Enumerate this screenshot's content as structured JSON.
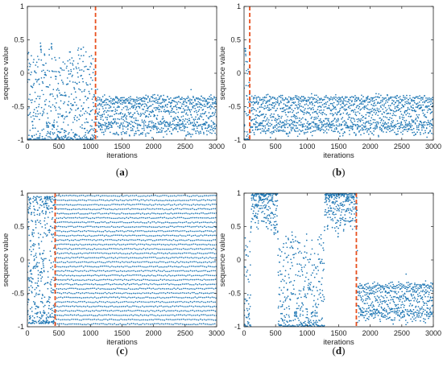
{
  "colors": {
    "points": "#1f77b4",
    "threshold_line": "#e8501e",
    "axes": "#222222"
  },
  "chart_data": [
    {
      "type": "scatter",
      "panel": "a",
      "label_prefix": "(",
      "label_letter": "a",
      "label_suffix": ")",
      "xlabel": "iterations",
      "ylabel": "sequence value",
      "xlim": [
        0,
        3000
      ],
      "ylim": [
        -1,
        1
      ],
      "xticks": [
        "0",
        "500",
        "1000",
        "1500",
        "2000",
        "2500",
        "3000"
      ],
      "yticks": [
        "-1",
        "-0.5",
        "0",
        "0.5",
        "1"
      ],
      "threshold_x": 1080,
      "n_points": 1500,
      "pattern": "transient then periodic clusters"
    },
    {
      "type": "scatter",
      "panel": "b",
      "label_prefix": "(",
      "label_letter": "b",
      "label_suffix": ")",
      "xlabel": "iterations",
      "ylabel": "sequence value",
      "xlim": [
        0,
        3000
      ],
      "ylim": [
        -1,
        1
      ],
      "xticks": [
        "0",
        "500",
        "1000",
        "1500",
        "2000",
        "2500",
        "3000"
      ],
      "yticks": [
        "-1",
        "-0.5",
        "0",
        "0.5",
        "1"
      ],
      "threshold_x": 90,
      "n_points": 1500,
      "pattern": "early convergence to banded oscillation"
    },
    {
      "type": "scatter",
      "panel": "c",
      "label_prefix": "(",
      "label_letter": "c",
      "label_suffix": ")",
      "xlabel": "iterations",
      "ylabel": "sequence value",
      "xlim": [
        0,
        3000
      ],
      "ylim": [
        -1,
        1
      ],
      "xticks": [
        "0",
        "500",
        "1000",
        "1500",
        "2000",
        "2500",
        "3000"
      ],
      "yticks": [
        "-1",
        "-0.5",
        "0",
        "0.5",
        "1"
      ],
      "threshold_x": 440,
      "n_points": 3000,
      "pattern": "dense horizontal bands after transient"
    },
    {
      "type": "scatter",
      "panel": "d",
      "label_prefix": "(",
      "label_letter": "d",
      "label_suffix": ")",
      "xlabel": "iterations",
      "ylabel": "sequence value",
      "xlim": [
        0,
        3000
      ],
      "ylim": [
        -1,
        1
      ],
      "xticks": [
        "0",
        "500",
        "1000",
        "1500",
        "2000",
        "2500",
        "3000"
      ],
      "yticks": [
        "-1",
        "-0.5",
        "0",
        "0.5",
        "1"
      ],
      "threshold_x": 1780,
      "n_points": 1500,
      "pattern": "long transient then periodic clusters"
    }
  ]
}
